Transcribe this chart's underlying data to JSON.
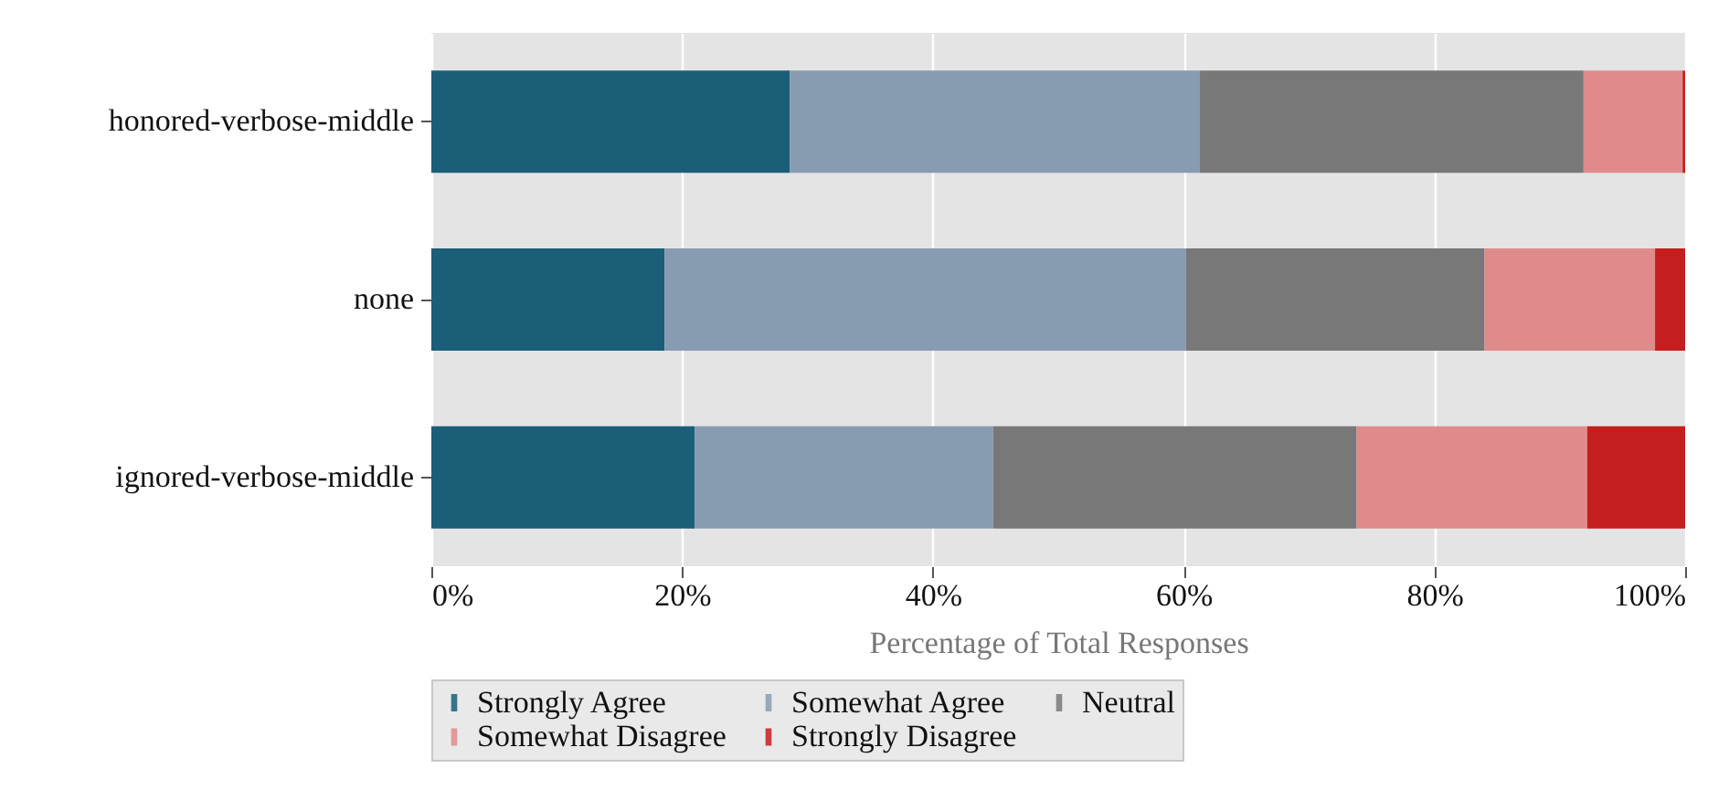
{
  "chart_data": {
    "type": "bar",
    "orientation": "horizontal",
    "stacked": true,
    "categories": [
      "honored-verbose-middle",
      "none",
      "ignored-verbose-middle"
    ],
    "series": [
      {
        "name": "Strongly Agree",
        "color": "#1b5e78",
        "values": [
          28.6,
          18.6,
          21.0
        ]
      },
      {
        "name": "Somewhat Agree",
        "color": "#879cb0",
        "values": [
          32.7,
          41.6,
          23.8
        ]
      },
      {
        "name": "Neutral",
        "color": "#787878",
        "values": [
          30.6,
          23.8,
          29.0
        ]
      },
      {
        "name": "Somewhat Disagree",
        "color": "#e08b8b",
        "values": [
          7.9,
          13.6,
          18.4
        ]
      },
      {
        "name": "Strongly Disagree",
        "color": "#c41e1e",
        "values": [
          0.2,
          2.4,
          7.8
        ]
      }
    ],
    "xlabel": "Percentage of Total Responses",
    "xlim": [
      0,
      100
    ],
    "xticks": [
      {
        "value": 0,
        "label": "0%"
      },
      {
        "value": 20,
        "label": "20%"
      },
      {
        "value": 40,
        "label": "40%"
      },
      {
        "value": 60,
        "label": "60%"
      },
      {
        "value": 80,
        "label": "80%"
      },
      {
        "value": 100,
        "label": "100%"
      }
    ],
    "grid": "x",
    "legend": "bottom"
  }
}
